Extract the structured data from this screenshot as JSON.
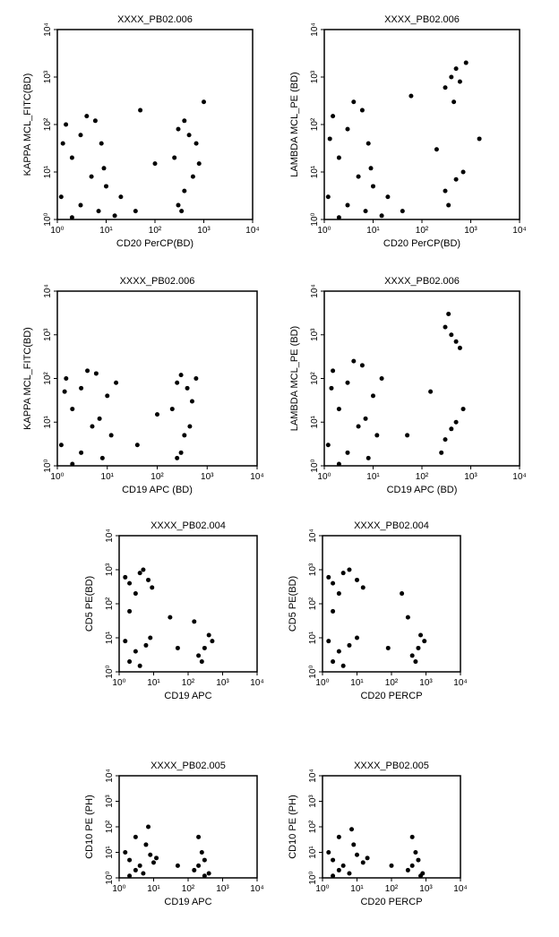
{
  "chart_data": [
    {
      "type": "scatter",
      "title": "XXXX_PB02.006",
      "xlabel": "CD20 PerCP(BD)",
      "ylabel": "KAPPA MCL_FITC(BD)",
      "log_scale": true,
      "color": "#000000",
      "xlim": [
        1,
        10000
      ],
      "ylim": [
        1,
        10000
      ],
      "xticks": [
        {
          "value": 1,
          "label": "10⁰"
        },
        {
          "value": 10,
          "label": "10¹"
        },
        {
          "value": 100,
          "label": "10²"
        },
        {
          "value": 1000,
          "label": "10³"
        },
        {
          "value": 10000,
          "label": "10⁴"
        }
      ],
      "yticks": [
        {
          "value": 1,
          "label": "10⁰"
        },
        {
          "value": 10,
          "label": "10¹"
        },
        {
          "value": 100,
          "label": "10²"
        },
        {
          "value": 1000,
          "label": "10³"
        },
        {
          "value": 10000,
          "label": "10⁴"
        }
      ],
      "x": [
        1.5,
        3,
        6,
        2,
        5,
        8,
        1.2,
        3,
        10,
        20,
        40,
        15,
        7,
        2,
        4,
        9,
        1.3,
        300,
        500,
        400,
        700,
        250,
        400,
        300,
        600,
        350,
        800,
        100,
        1000,
        50
      ],
      "y": [
        100,
        60,
        120,
        20,
        8,
        40,
        3,
        2,
        5,
        3,
        1.5,
        1.2,
        1.5,
        1.1,
        150,
        12,
        40,
        80,
        60,
        120,
        40,
        20,
        4,
        2,
        8,
        1.5,
        15,
        15,
        300,
        200
      ]
    },
    {
      "type": "scatter",
      "title": "XXXX_PB02.006",
      "xlabel": "CD20 PerCP(BD)",
      "ylabel": "LAMBDA MCL_PE (BD)",
      "log_scale": true,
      "color": "#000000",
      "xlim": [
        1,
        10000
      ],
      "ylim": [
        1,
        10000
      ],
      "xticks": [
        {
          "value": 1,
          "label": "10⁰"
        },
        {
          "value": 10,
          "label": "10¹"
        },
        {
          "value": 100,
          "label": "10²"
        },
        {
          "value": 1000,
          "label": "10³"
        },
        {
          "value": 10000,
          "label": "10⁴"
        }
      ],
      "yticks": [
        {
          "value": 1,
          "label": "10⁰"
        },
        {
          "value": 10,
          "label": "10¹"
        },
        {
          "value": 100,
          "label": "10²"
        },
        {
          "value": 1000,
          "label": "10³"
        },
        {
          "value": 10000,
          "label": "10⁴"
        }
      ],
      "x": [
        1.5,
        3,
        6,
        2,
        5,
        8,
        1.2,
        3,
        10,
        20,
        40,
        15,
        7,
        2,
        4,
        9,
        1.3,
        400,
        600,
        500,
        300,
        800,
        450,
        500,
        300,
        700,
        350,
        200,
        1500,
        60
      ],
      "y": [
        150,
        80,
        200,
        20,
        8,
        40,
        3,
        2,
        5,
        3,
        1.5,
        1.2,
        1.5,
        1.1,
        300,
        12,
        50,
        1000,
        800,
        1500,
        600,
        2000,
        300,
        7,
        4,
        10,
        2,
        30,
        50,
        400
      ]
    },
    {
      "type": "scatter",
      "title": "XXXX_PB02.006",
      "xlabel": "CD19 APC (BD)",
      "ylabel": "KAPPA MCL_FITC(BD)",
      "log_scale": true,
      "color": "#000000",
      "xlim": [
        1,
        10000
      ],
      "ylim": [
        1,
        10000
      ],
      "xticks": [
        {
          "value": 1,
          "label": "10⁰"
        },
        {
          "value": 10,
          "label": "10¹"
        },
        {
          "value": 100,
          "label": "10²"
        },
        {
          "value": 1000,
          "label": "10³"
        },
        {
          "value": 10000,
          "label": "10⁴"
        }
      ],
      "yticks": [
        {
          "value": 1,
          "label": "10⁰"
        },
        {
          "value": 10,
          "label": "10¹"
        },
        {
          "value": 100,
          "label": "10²"
        },
        {
          "value": 1000,
          "label": "10³"
        },
        {
          "value": 10000,
          "label": "10⁴"
        }
      ],
      "x": [
        1.5,
        3,
        6,
        2,
        5,
        10,
        1.2,
        3,
        12,
        8,
        4,
        2,
        15,
        7,
        1.4,
        250,
        400,
        300,
        500,
        200,
        350,
        300,
        450,
        250,
        600,
        40,
        100
      ],
      "y": [
        100,
        60,
        130,
        20,
        8,
        40,
        3,
        2,
        5,
        1.5,
        150,
        1.1,
        80,
        12,
        50,
        80,
        60,
        120,
        30,
        20,
        5,
        2,
        8,
        1.5,
        100,
        3,
        15
      ]
    },
    {
      "type": "scatter",
      "title": "XXXX_PB02.006",
      "xlabel": "CD19 APC (BD)",
      "ylabel": "LAMBDA MCL_PE (BD)",
      "log_scale": true,
      "color": "#000000",
      "xlim": [
        1,
        10000
      ],
      "ylim": [
        1,
        10000
      ],
      "xticks": [
        {
          "value": 1,
          "label": "10⁰"
        },
        {
          "value": 10,
          "label": "10¹"
        },
        {
          "value": 100,
          "label": "10²"
        },
        {
          "value": 1000,
          "label": "10³"
        },
        {
          "value": 10000,
          "label": "10⁴"
        }
      ],
      "yticks": [
        {
          "value": 1,
          "label": "10⁰"
        },
        {
          "value": 10,
          "label": "10¹"
        },
        {
          "value": 100,
          "label": "10²"
        },
        {
          "value": 1000,
          "label": "10³"
        },
        {
          "value": 10000,
          "label": "10⁴"
        }
      ],
      "x": [
        1.5,
        3,
        6,
        2,
        5,
        10,
        1.2,
        3,
        12,
        8,
        4,
        2,
        15,
        7,
        1.4,
        400,
        500,
        300,
        600,
        350,
        400,
        300,
        500,
        250,
        700,
        50,
        150
      ],
      "y": [
        150,
        80,
        200,
        20,
        8,
        40,
        3,
        2,
        5,
        1.5,
        250,
        1.1,
        100,
        12,
        60,
        1000,
        700,
        1500,
        500,
        3000,
        7,
        4,
        10,
        2,
        20,
        5,
        50
      ]
    },
    {
      "type": "scatter",
      "title": "XXXX_PB02.004",
      "xlabel": "CD19 APC",
      "ylabel": "CD5 PE(BD)",
      "log_scale": true,
      "color": "#000000",
      "xlim": [
        1,
        10000
      ],
      "ylim": [
        1,
        10000
      ],
      "xticks": [
        {
          "value": 1,
          "label": "10⁰"
        },
        {
          "value": 10,
          "label": "10¹"
        },
        {
          "value": 100,
          "label": "10²"
        },
        {
          "value": 1000,
          "label": "10³"
        },
        {
          "value": 10000,
          "label": "10⁴"
        }
      ],
      "yticks": [
        {
          "value": 1,
          "label": "10⁰"
        },
        {
          "value": 10,
          "label": "10¹"
        },
        {
          "value": 100,
          "label": "10²"
        },
        {
          "value": 1000,
          "label": "10³"
        },
        {
          "value": 10000,
          "label": "10⁴"
        }
      ],
      "x": [
        2,
        4,
        7,
        3,
        1.5,
        9,
        5,
        2,
        1.5,
        3,
        6,
        2,
        8,
        4,
        300,
        200,
        500,
        250,
        400,
        150,
        50,
        30
      ],
      "y": [
        400,
        800,
        500,
        200,
        600,
        300,
        1000,
        60,
        8,
        4,
        6,
        2,
        10,
        1.5,
        5,
        3,
        8,
        2,
        12,
        30,
        5,
        40
      ]
    },
    {
      "type": "scatter",
      "title": "XXXX_PB02.004",
      "xlabel": "CD20 PERCP",
      "ylabel": "CD5 PE(BD)",
      "log_scale": true,
      "color": "#000000",
      "xlim": [
        1,
        10000
      ],
      "ylim": [
        1,
        10000
      ],
      "xticks": [
        {
          "value": 1,
          "label": "10⁰"
        },
        {
          "value": 10,
          "label": "10¹"
        },
        {
          "value": 100,
          "label": "10²"
        },
        {
          "value": 1000,
          "label": "10³"
        },
        {
          "value": 10000,
          "label": "10⁴"
        }
      ],
      "yticks": [
        {
          "value": 1,
          "label": "10⁰"
        },
        {
          "value": 10,
          "label": "10¹"
        },
        {
          "value": 100,
          "label": "10²"
        },
        {
          "value": 1000,
          "label": "10³"
        },
        {
          "value": 10000,
          "label": "10⁴"
        }
      ],
      "x": [
        2,
        4,
        10,
        3,
        1.5,
        15,
        6,
        2,
        1.5,
        3,
        6,
        2,
        10,
        4,
        600,
        400,
        900,
        500,
        700,
        300,
        80,
        200
      ],
      "y": [
        400,
        800,
        500,
        200,
        600,
        300,
        1000,
        60,
        8,
        4,
        6,
        2,
        10,
        1.5,
        5,
        3,
        8,
        2,
        12,
        40,
        5,
        200
      ]
    },
    {
      "type": "scatter",
      "title": "XXXX_PB02.005",
      "xlabel": "CD19 APC",
      "ylabel": "CD10 PE (PH)",
      "log_scale": true,
      "color": "#000000",
      "xlim": [
        1,
        10000
      ],
      "ylim": [
        1,
        10000
      ],
      "xticks": [
        {
          "value": 1,
          "label": "10⁰"
        },
        {
          "value": 10,
          "label": "10¹"
        },
        {
          "value": 100,
          "label": "10²"
        },
        {
          "value": 1000,
          "label": "10³"
        },
        {
          "value": 10000,
          "label": "10⁴"
        }
      ],
      "yticks": [
        {
          "value": 1,
          "label": "10⁰"
        },
        {
          "value": 10,
          "label": "10¹"
        },
        {
          "value": 100,
          "label": "10²"
        },
        {
          "value": 1000,
          "label": "10³"
        },
        {
          "value": 10000,
          "label": "10⁴"
        }
      ],
      "x": [
        2,
        4,
        8,
        3,
        1.5,
        10,
        5,
        2,
        6,
        12,
        7,
        3,
        200,
        300,
        150,
        250,
        400,
        200,
        300,
        50
      ],
      "y": [
        5,
        3,
        8,
        2,
        10,
        4,
        1.5,
        1.2,
        20,
        6,
        100,
        40,
        3,
        5,
        2,
        10,
        1.5,
        40,
        1.2,
        3
      ]
    },
    {
      "type": "scatter",
      "title": "XXXX_PB02.005",
      "xlabel": "CD20 PERCP",
      "ylabel": "CD10 PE (PH)",
      "log_scale": true,
      "color": "#000000",
      "xlim": [
        1,
        10000
      ],
      "ylim": [
        1,
        10000
      ],
      "xticks": [
        {
          "value": 1,
          "label": "10⁰"
        },
        {
          "value": 10,
          "label": "10¹"
        },
        {
          "value": 100,
          "label": "10²"
        },
        {
          "value": 1000,
          "label": "10³"
        },
        {
          "value": 10000,
          "label": "10⁴"
        }
      ],
      "yticks": [
        {
          "value": 1,
          "label": "10⁰"
        },
        {
          "value": 10,
          "label": "10¹"
        },
        {
          "value": 100,
          "label": "10²"
        },
        {
          "value": 1000,
          "label": "10³"
        },
        {
          "value": 10000,
          "label": "10⁴"
        }
      ],
      "x": [
        2,
        4,
        10,
        3,
        1.5,
        15,
        6,
        2,
        8,
        20,
        7,
        3,
        400,
        600,
        300,
        500,
        800,
        400,
        700,
        100
      ],
      "y": [
        5,
        3,
        8,
        2,
        10,
        4,
        1.5,
        1.2,
        20,
        6,
        80,
        40,
        3,
        5,
        2,
        10,
        1.5,
        40,
        1.2,
        3
      ]
    }
  ]
}
